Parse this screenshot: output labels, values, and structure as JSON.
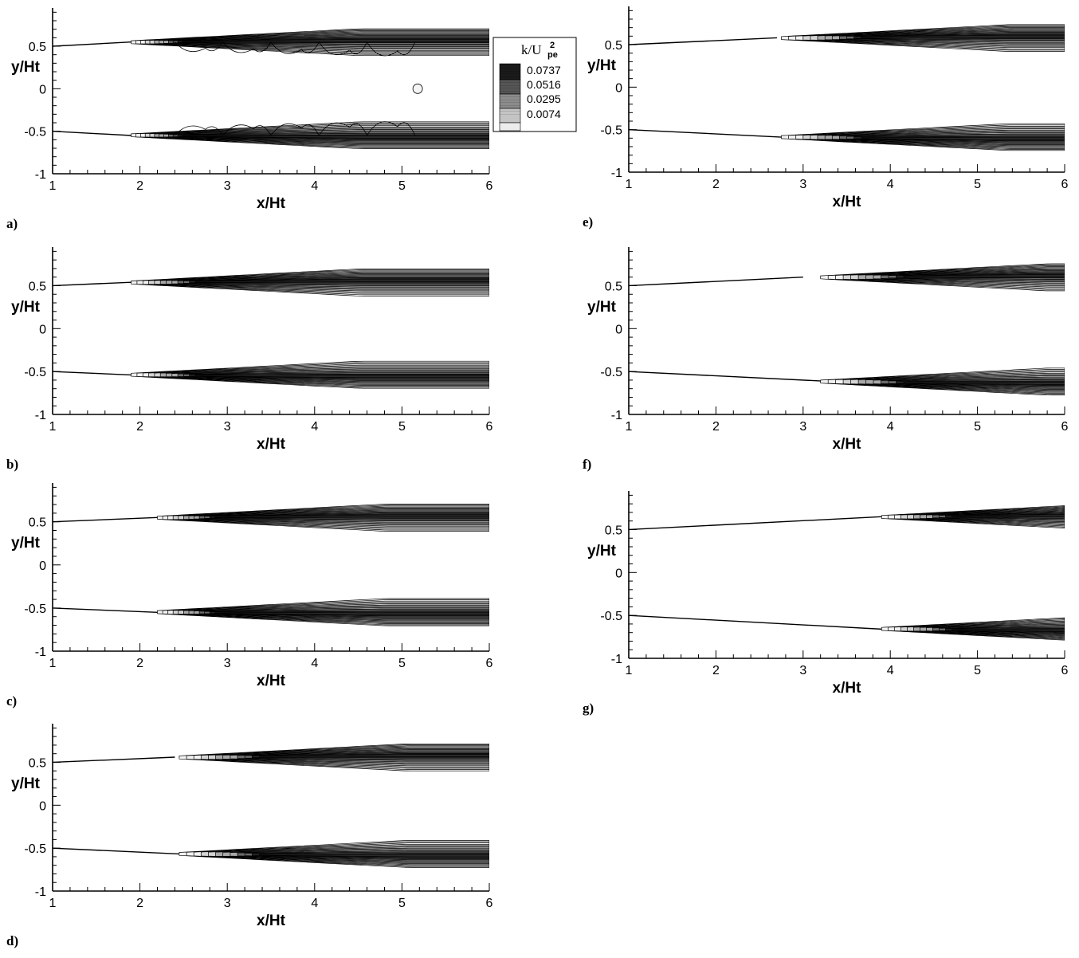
{
  "colorbar": {
    "title_base": "k/U",
    "title_sup": "2",
    "title_sub": "pe",
    "levels": [
      "0.0737",
      "0.0516",
      "0.0295",
      "0.0074"
    ],
    "shades": [
      "#1a1a1a",
      "#555555",
      "#8c8c8c",
      "#c4c4c4",
      "#ececec"
    ]
  },
  "chart_data": [
    {
      "type": "contour",
      "panel": "a)",
      "xlabel": "x/Ht",
      "ylabel": "y/Ht",
      "xlim": [
        1,
        6
      ],
      "ylim": [
        -1,
        0.95
      ],
      "xticks": [
        "1",
        "2",
        "3",
        "4",
        "5",
        "6"
      ],
      "yticks": [
        "-1",
        "-0.5",
        "0",
        "0.5"
      ],
      "wall_top": [
        [
          1,
          0.5
        ],
        [
          1.9,
          0.55
        ]
      ],
      "wall_bottom": [
        [
          1,
          -0.5
        ],
        [
          1.9,
          -0.55
        ]
      ],
      "separation_x": 1.9,
      "max_x": 2.7,
      "unsteady": true
    },
    {
      "type": "contour",
      "panel": "b)",
      "xlabel": "x/Ht",
      "ylabel": "y/Ht",
      "xlim": [
        1,
        6
      ],
      "ylim": [
        -1,
        0.95
      ],
      "xticks": [
        "1",
        "2",
        "3",
        "4",
        "5",
        "6"
      ],
      "yticks": [
        "-1",
        "-0.5",
        "0",
        "0.5"
      ],
      "wall_top": [
        [
          1,
          0.5
        ],
        [
          1.9,
          0.54
        ]
      ],
      "wall_bottom": [
        [
          1,
          -0.5
        ],
        [
          1.9,
          -0.54
        ]
      ],
      "separation_x": 1.9,
      "max_x": 2.9,
      "unsteady": false
    },
    {
      "type": "contour",
      "panel": "c)",
      "xlabel": "x/Ht",
      "ylabel": "y/Ht",
      "xlim": [
        1,
        6
      ],
      "ylim": [
        -1,
        0.95
      ],
      "xticks": [
        "1",
        "2",
        "3",
        "4",
        "5",
        "6"
      ],
      "yticks": [
        "-1",
        "-0.5",
        "0",
        "0.5"
      ],
      "wall_top": [
        [
          1,
          0.5
        ],
        [
          2.2,
          0.55
        ]
      ],
      "wall_bottom": [
        [
          1,
          -0.5
        ],
        [
          2.2,
          -0.55
        ]
      ],
      "separation_x": 2.2,
      "max_x": 3.1,
      "unsteady": false
    },
    {
      "type": "contour",
      "panel": "d)",
      "xlabel": "x/Ht",
      "ylabel": "y/Ht",
      "xlim": [
        1,
        6
      ],
      "ylim": [
        -1,
        0.95
      ],
      "xticks": [
        "1",
        "2",
        "3",
        "4",
        "5",
        "6"
      ],
      "yticks": [
        "-1",
        "-0.5",
        "0",
        "0.5"
      ],
      "wall_top": [
        [
          1,
          0.5
        ],
        [
          2.4,
          0.56
        ]
      ],
      "wall_bottom": [
        [
          1,
          -0.5
        ],
        [
          2.5,
          -0.57
        ]
      ],
      "separation_x": 2.45,
      "max_x": 3.7,
      "unsteady": false
    },
    {
      "type": "contour",
      "panel": "e)",
      "xlabel": "x/Ht",
      "ylabel": "y/Ht",
      "xlim": [
        1,
        6
      ],
      "ylim": [
        -1,
        0.95
      ],
      "xticks": [
        "1",
        "2",
        "3",
        "4",
        "5",
        "6"
      ],
      "yticks": [
        "-1",
        "-0.5",
        "0",
        "0.5"
      ],
      "wall_top": [
        [
          1,
          0.5
        ],
        [
          2.7,
          0.58
        ]
      ],
      "wall_bottom": [
        [
          1,
          -0.5
        ],
        [
          2.8,
          -0.59
        ]
      ],
      "separation_x": 2.75,
      "max_x": 4.0,
      "unsteady": false
    },
    {
      "type": "contour",
      "panel": "f)",
      "xlabel": "x/Ht",
      "ylabel": "y/Ht",
      "xlim": [
        1,
        6
      ],
      "ylim": [
        -1,
        0.95
      ],
      "xticks": [
        "1",
        "2",
        "3",
        "4",
        "5",
        "6"
      ],
      "yticks": [
        "-1",
        "-0.5",
        "0",
        "0.5"
      ],
      "wall_top": [
        [
          1,
          0.5
        ],
        [
          3.0,
          0.6
        ]
      ],
      "wall_bottom": [
        [
          1,
          -0.5
        ],
        [
          3.4,
          -0.62
        ]
      ],
      "separation_x": 3.2,
      "max_x": 4.5,
      "unsteady": false
    },
    {
      "type": "contour",
      "panel": "g)",
      "xlabel": "x/Ht",
      "ylabel": "y/Ht",
      "xlim": [
        1,
        6
      ],
      "ylim": [
        -1,
        0.95
      ],
      "xticks": [
        "1",
        "2",
        "3",
        "4",
        "5",
        "6"
      ],
      "yticks": [
        "-1",
        "-0.5",
        "0",
        "0.5"
      ],
      "wall_top": [
        [
          1,
          0.5
        ],
        [
          3.9,
          0.65
        ]
      ],
      "wall_bottom": [
        [
          1,
          -0.5
        ],
        [
          3.9,
          -0.66
        ]
      ],
      "separation_x": 3.9,
      "max_x": 5.0,
      "unsteady": false
    }
  ]
}
